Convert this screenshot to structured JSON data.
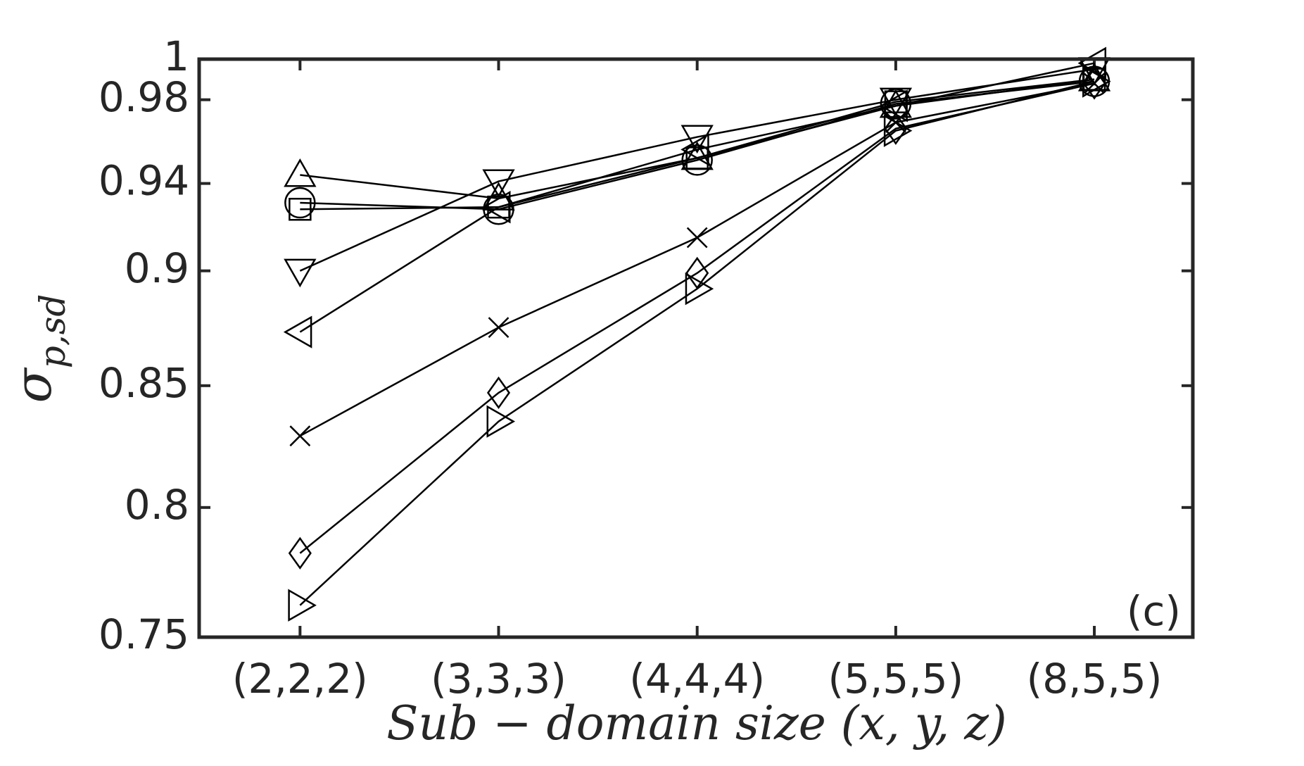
{
  "chart_data": {
    "type": "line",
    "xlabel": "Sub − domain size (x, y, z)",
    "ylabel": "σ",
    "ylabel_sub": "p,sd",
    "annotation": "(c)",
    "categories": [
      "(2,2,2)",
      "(3,3,3)",
      "(4,4,4)",
      "(5,5,5)",
      "(8,5,5)"
    ],
    "ylim": [
      0.75,
      1
    ],
    "ylog": true,
    "yticks": [
      0.75,
      0.8,
      0.85,
      0.9,
      0.94,
      0.98,
      1
    ],
    "color": "#000000",
    "series": [
      {
        "marker": "triangle-up",
        "values": [
          0.944,
          0.933,
          0.952,
          0.977,
          0.99
        ]
      },
      {
        "marker": "circle",
        "values": [
          0.931,
          0.928,
          0.951,
          0.978,
          0.989
        ]
      },
      {
        "marker": "square",
        "values": [
          0.928,
          0.929,
          0.952,
          0.979,
          0.99
        ]
      },
      {
        "marker": "triangle-down",
        "values": [
          0.9,
          0.941,
          0.962,
          0.98,
          0.995
        ]
      },
      {
        "marker": "triangle-left",
        "values": [
          0.873,
          0.929,
          0.956,
          0.977,
          0.998
        ]
      },
      {
        "marker": "x",
        "values": [
          0.829,
          0.875,
          0.915,
          0.969,
          0.988
        ]
      },
      {
        "marker": "diamond",
        "values": [
          0.782,
          0.847,
          0.899,
          0.966,
          0.988
        ]
      },
      {
        "marker": "triangle-right",
        "values": [
          0.762,
          0.835,
          0.892,
          0.965,
          0.989
        ]
      }
    ]
  }
}
